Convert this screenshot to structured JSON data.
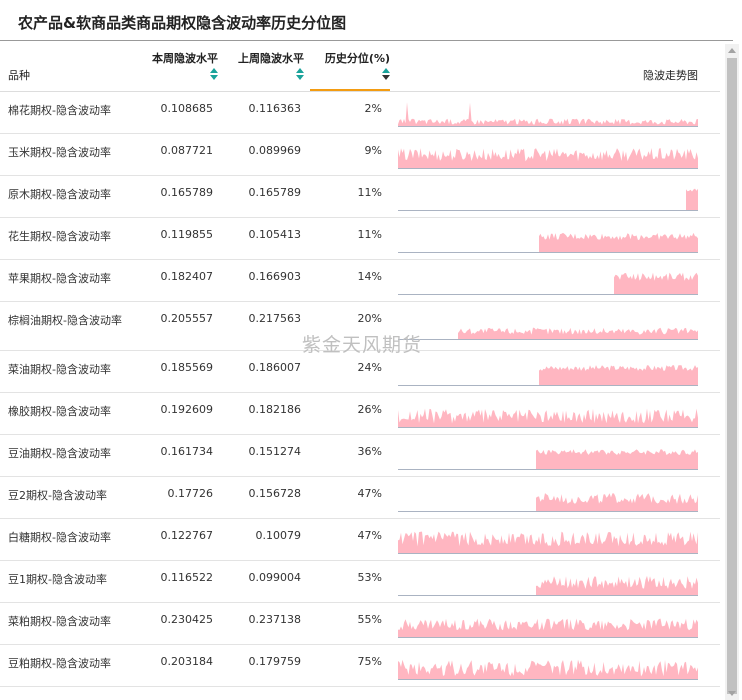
{
  "page": {
    "title": "农产品&软商品类商品期权隐含波动率历史分位图",
    "watermark": "紫金天风期货"
  },
  "header": {
    "col_name": "品种",
    "col_this_week": "本周隐波水平",
    "col_last_week": "上周隐波水平",
    "col_pct": "历史分位(%)",
    "col_trend": "隐波走势图"
  },
  "colors": {
    "accent": "#1aa39b",
    "sort_active": "#f39c12",
    "sparkline": "#ffb6c1"
  },
  "rows": [
    {
      "name": "棉花期权-隐含波动率",
      "this_week": "0.108685",
      "last_week": "0.116363",
      "pct": "2%",
      "start": 0.0,
      "level": 0.18,
      "noise": 0.1,
      "spikes": 2
    },
    {
      "name": "玉米期权-隐含波动率",
      "this_week": "0.087721",
      "last_week": "0.089969",
      "pct": "9%",
      "start": 0.0,
      "level": 0.48,
      "noise": 0.22,
      "spikes": 0
    },
    {
      "name": "原木期权-隐含波动率",
      "this_week": "0.165789",
      "last_week": "0.165789",
      "pct": "11%",
      "start": 0.96,
      "level": 0.7,
      "noise": 0.05,
      "spikes": 0
    },
    {
      "name": "花生期权-隐含波动率",
      "this_week": "0.119855",
      "last_week": "0.105413",
      "pct": "11%",
      "start": 0.47,
      "level": 0.55,
      "noise": 0.12,
      "spikes": 0
    },
    {
      "name": "苹果期权-隐含波动率",
      "this_week": "0.182407",
      "last_week": "0.166903",
      "pct": "14%",
      "start": 0.72,
      "level": 0.62,
      "noise": 0.15,
      "spikes": 0
    },
    {
      "name": "棕榈油期权-隐含波动率",
      "this_week": "0.205557",
      "last_week": "0.217563",
      "pct": "20%",
      "start": 0.2,
      "level": 0.3,
      "noise": 0.12,
      "spikes": 0
    },
    {
      "name": "菜油期权-隐含波动率",
      "this_week": "0.185569",
      "last_week": "0.186007",
      "pct": "24%",
      "start": 0.47,
      "level": 0.6,
      "noise": 0.1,
      "spikes": 0
    },
    {
      "name": "橡胶期权-隐含波动率",
      "this_week": "0.192609",
      "last_week": "0.182186",
      "pct": "26%",
      "start": 0.0,
      "level": 0.4,
      "noise": 0.25,
      "spikes": 0
    },
    {
      "name": "豆油期权-隐含波动率",
      "this_week": "0.161734",
      "last_week": "0.151274",
      "pct": "36%",
      "start": 0.46,
      "level": 0.6,
      "noise": 0.1,
      "spikes": 0
    },
    {
      "name": "豆2期权-隐含波动率",
      "this_week": "0.17726",
      "last_week": "0.156728",
      "pct": "47%",
      "start": 0.46,
      "level": 0.45,
      "noise": 0.18,
      "spikes": 0
    },
    {
      "name": "白糖期权-隐含波动率",
      "this_week": "0.122767",
      "last_week": "0.10079",
      "pct": "47%",
      "start": 0.0,
      "level": 0.5,
      "noise": 0.25,
      "spikes": 0
    },
    {
      "name": "豆1期权-隐含波动率",
      "this_week": "0.116522",
      "last_week": "0.099004",
      "pct": "53%",
      "start": 0.46,
      "level": 0.45,
      "noise": 0.22,
      "spikes": 0
    },
    {
      "name": "菜粕期权-隐含波动率",
      "this_week": "0.230425",
      "last_week": "0.237138",
      "pct": "55%",
      "start": 0.0,
      "level": 0.45,
      "noise": 0.2,
      "spikes": 0
    },
    {
      "name": "豆粕期权-隐含波动率",
      "this_week": "0.203184",
      "last_week": "0.179759",
      "pct": "75%",
      "start": 0.0,
      "level": 0.4,
      "noise": 0.28,
      "spikes": 0
    }
  ]
}
